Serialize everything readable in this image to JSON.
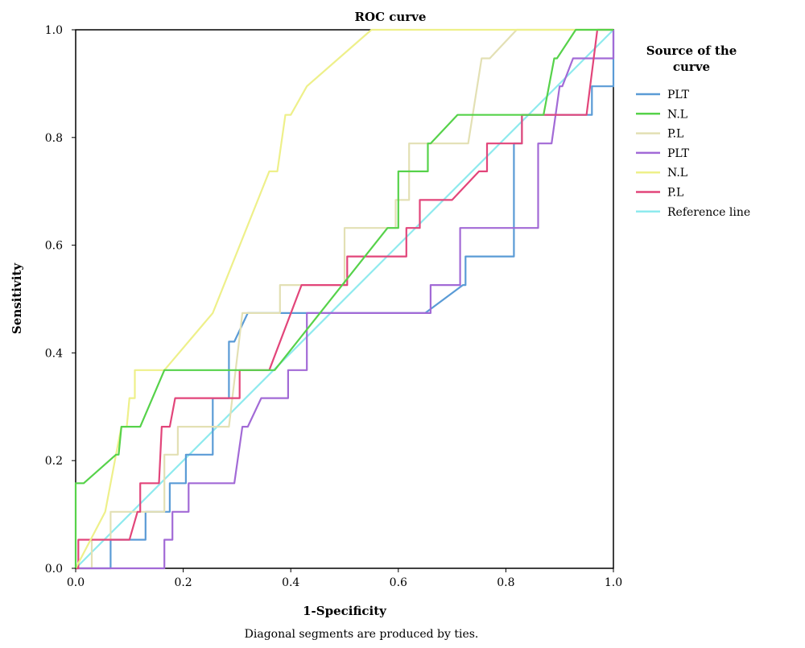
{
  "chart_data": {
    "type": "line",
    "title": "ROC curve",
    "xlabel": "1-Specificity",
    "ylabel": "Sensitivity",
    "xlim": [
      0,
      1
    ],
    "ylim": [
      0,
      1
    ],
    "x_ticks": [
      "0.0",
      "0.2",
      "0.4",
      "0.6",
      "0.8",
      "1.0"
    ],
    "y_ticks": [
      "0.0",
      "0.2",
      "0.4",
      "0.6",
      "0.8",
      "1.0"
    ],
    "legend_title_lines": [
      "Source of the",
      "curve"
    ],
    "legend_position": "right",
    "grid": false,
    "footnote": "Diagonal segments are produced by ties.",
    "series": [
      {
        "name": "PLT",
        "color": "#5a9bd6",
        "points": [
          [
            0,
            0
          ],
          [
            0.065,
            0
          ],
          [
            0.065,
            0.053
          ],
          [
            0.13,
            0.053
          ],
          [
            0.13,
            0.105
          ],
          [
            0.175,
            0.105
          ],
          [
            0.175,
            0.158
          ],
          [
            0.205,
            0.158
          ],
          [
            0.205,
            0.211
          ],
          [
            0.255,
            0.211
          ],
          [
            0.255,
            0.316
          ],
          [
            0.285,
            0.316
          ],
          [
            0.285,
            0.421
          ],
          [
            0.295,
            0.421
          ],
          [
            0.32,
            0.474
          ],
          [
            0.43,
            0.474
          ],
          [
            0.5,
            0.474
          ],
          [
            0.65,
            0.474
          ],
          [
            0.72,
            0.526
          ],
          [
            0.725,
            0.526
          ],
          [
            0.725,
            0.579
          ],
          [
            0.815,
            0.579
          ],
          [
            0.815,
            0.789
          ],
          [
            0.83,
            0.789
          ],
          [
            0.83,
            0.842
          ],
          [
            0.96,
            0.842
          ],
          [
            0.96,
            0.895
          ],
          [
            1,
            0.895
          ],
          [
            1,
            1
          ]
        ]
      },
      {
        "name": "N.L",
        "color": "#56d24a",
        "points": [
          [
            0,
            0
          ],
          [
            0,
            0.158
          ],
          [
            0.015,
            0.158
          ],
          [
            0.075,
            0.211
          ],
          [
            0.08,
            0.211
          ],
          [
            0.085,
            0.263
          ],
          [
            0.12,
            0.263
          ],
          [
            0.165,
            0.368
          ],
          [
            0.37,
            0.368
          ],
          [
            0.58,
            0.632
          ],
          [
            0.6,
            0.632
          ],
          [
            0.6,
            0.737
          ],
          [
            0.655,
            0.737
          ],
          [
            0.655,
            0.789
          ],
          [
            0.66,
            0.789
          ],
          [
            0.71,
            0.842
          ],
          [
            0.87,
            0.842
          ],
          [
            0.89,
            0.947
          ],
          [
            0.895,
            0.947
          ],
          [
            0.93,
            1
          ],
          [
            1,
            1
          ]
        ]
      },
      {
        "name": "P.L",
        "color": "#e3e0b4",
        "points": [
          [
            0,
            0
          ],
          [
            0.03,
            0
          ],
          [
            0.03,
            0.053
          ],
          [
            0.065,
            0.053
          ],
          [
            0.065,
            0.105
          ],
          [
            0.165,
            0.105
          ],
          [
            0.165,
            0.211
          ],
          [
            0.19,
            0.211
          ],
          [
            0.19,
            0.263
          ],
          [
            0.285,
            0.263
          ],
          [
            0.31,
            0.474
          ],
          [
            0.38,
            0.474
          ],
          [
            0.38,
            0.526
          ],
          [
            0.5,
            0.526
          ],
          [
            0.5,
            0.632
          ],
          [
            0.595,
            0.632
          ],
          [
            0.595,
            0.684
          ],
          [
            0.62,
            0.684
          ],
          [
            0.62,
            0.789
          ],
          [
            0.73,
            0.789
          ],
          [
            0.755,
            0.947
          ],
          [
            0.77,
            0.947
          ],
          [
            0.82,
            1
          ],
          [
            1,
            1
          ]
        ]
      },
      {
        "name": "PLT",
        "color": "#a26ad6",
        "points": [
          [
            0,
            0
          ],
          [
            0.165,
            0
          ],
          [
            0.165,
            0.053
          ],
          [
            0.18,
            0.053
          ],
          [
            0.18,
            0.105
          ],
          [
            0.21,
            0.105
          ],
          [
            0.21,
            0.158
          ],
          [
            0.295,
            0.158
          ],
          [
            0.31,
            0.263
          ],
          [
            0.32,
            0.263
          ],
          [
            0.345,
            0.316
          ],
          [
            0.395,
            0.316
          ],
          [
            0.395,
            0.368
          ],
          [
            0.43,
            0.368
          ],
          [
            0.43,
            0.474
          ],
          [
            0.66,
            0.474
          ],
          [
            0.66,
            0.526
          ],
          [
            0.715,
            0.526
          ],
          [
            0.715,
            0.632
          ],
          [
            0.86,
            0.632
          ],
          [
            0.86,
            0.789
          ],
          [
            0.885,
            0.789
          ],
          [
            0.9,
            0.895
          ],
          [
            0.905,
            0.895
          ],
          [
            0.925,
            0.947
          ],
          [
            1,
            0.947
          ],
          [
            1,
            1
          ]
        ]
      },
      {
        "name": "N.L",
        "color": "#eef08a",
        "points": [
          [
            0,
            0
          ],
          [
            0.055,
            0.105
          ],
          [
            0.075,
            0.211
          ],
          [
            0.085,
            0.263
          ],
          [
            0.095,
            0.263
          ],
          [
            0.1,
            0.316
          ],
          [
            0.11,
            0.316
          ],
          [
            0.11,
            0.368
          ],
          [
            0.165,
            0.368
          ],
          [
            0.255,
            0.474
          ],
          [
            0.36,
            0.737
          ],
          [
            0.375,
            0.737
          ],
          [
            0.39,
            0.842
          ],
          [
            0.4,
            0.842
          ],
          [
            0.43,
            0.895
          ],
          [
            0.55,
            1
          ],
          [
            1,
            1
          ]
        ]
      },
      {
        "name": "P.L",
        "color": "#e2457a",
        "points": [
          [
            0,
            0
          ],
          [
            0.005,
            0
          ],
          [
            0.005,
            0.053
          ],
          [
            0.1,
            0.053
          ],
          [
            0.115,
            0.105
          ],
          [
            0.12,
            0.105
          ],
          [
            0.12,
            0.158
          ],
          [
            0.155,
            0.158
          ],
          [
            0.16,
            0.263
          ],
          [
            0.175,
            0.263
          ],
          [
            0.185,
            0.316
          ],
          [
            0.305,
            0.316
          ],
          [
            0.305,
            0.368
          ],
          [
            0.36,
            0.368
          ],
          [
            0.42,
            0.526
          ],
          [
            0.505,
            0.526
          ],
          [
            0.505,
            0.579
          ],
          [
            0.615,
            0.579
          ],
          [
            0.615,
            0.632
          ],
          [
            0.64,
            0.632
          ],
          [
            0.64,
            0.684
          ],
          [
            0.7,
            0.684
          ],
          [
            0.75,
            0.737
          ],
          [
            0.765,
            0.737
          ],
          [
            0.765,
            0.789
          ],
          [
            0.83,
            0.789
          ],
          [
            0.83,
            0.842
          ],
          [
            0.95,
            0.842
          ],
          [
            0.97,
            1
          ],
          [
            1,
            1
          ]
        ]
      },
      {
        "name": "Reference line",
        "color": "#8eeaee",
        "points": [
          [
            0,
            0
          ],
          [
            1,
            1
          ]
        ]
      }
    ]
  }
}
